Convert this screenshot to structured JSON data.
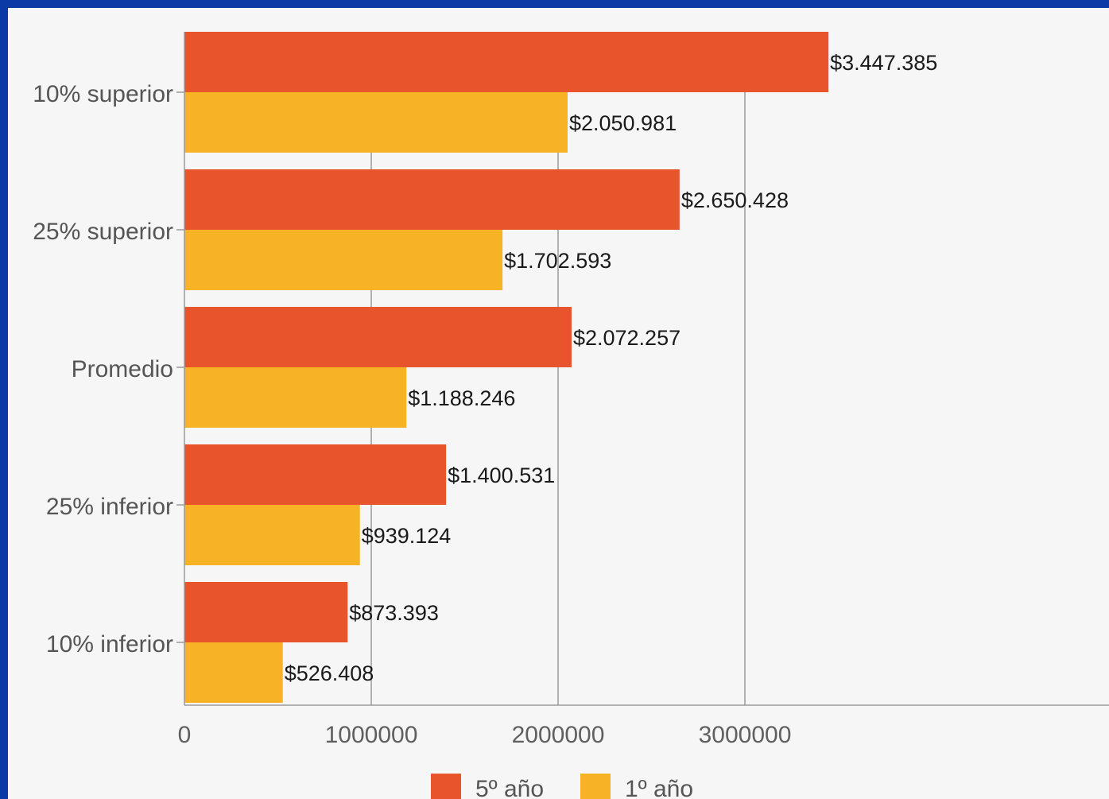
{
  "chart_data": {
    "type": "bar",
    "orientation": "horizontal",
    "categories": [
      "10% superior",
      "25% superior",
      "Promedio",
      "25% inferior",
      "10% inferior"
    ],
    "series": [
      {
        "name": "5º año",
        "color": "#e8542c",
        "values": [
          3447385,
          2650428,
          2072257,
          1400531,
          873393
        ],
        "labels": [
          "$3.447.385",
          "$2.650.428",
          "$2.072.257",
          "$1.400.531",
          "$873.393"
        ]
      },
      {
        "name": "1º año",
        "color": "#f7b226",
        "values": [
          2050981,
          1702593,
          1188246,
          939124,
          526408
        ],
        "labels": [
          "$2.050.981",
          "$1.702.593",
          "$1.188.246",
          "$939.124",
          "$526.408"
        ]
      }
    ],
    "xlim": [
      0,
      3600000
    ],
    "x_ticks": [
      0,
      1000000,
      2000000,
      3000000
    ],
    "x_tick_labels": [
      "0",
      "1000000",
      "2000000",
      "3000000"
    ],
    "grid": true,
    "legend": "bottom",
    "title": "",
    "xlabel": "",
    "ylabel": ""
  }
}
